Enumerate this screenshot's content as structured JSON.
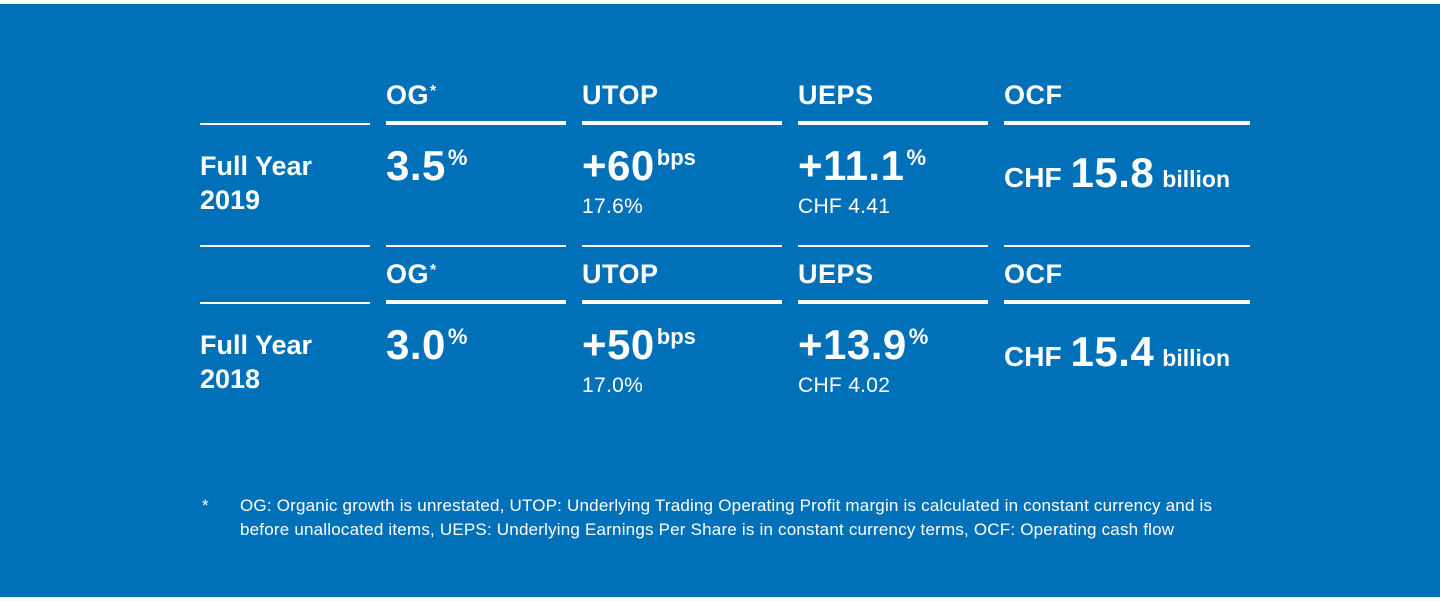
{
  "slide": {
    "background_color": "#0071b8",
    "text_color": "#ffffff"
  },
  "sections": [
    {
      "period": {
        "line1": "Full Year",
        "line2": "2019"
      },
      "og": {
        "header": "OG",
        "header_sup": "*",
        "value": "3.5",
        "unit": "%"
      },
      "utop": {
        "header": "UTOP",
        "value": "+60",
        "unit": "bps",
        "detail": "17.6%"
      },
      "ueps": {
        "header": "UEPS",
        "value": "+11.1",
        "unit": "%",
        "detail": "CHF 4.41"
      },
      "ocf": {
        "header": "OCF",
        "currency": "CHF",
        "value": "15.8",
        "scale": "billion"
      }
    },
    {
      "period": {
        "line1": "Full Year",
        "line2": "2018"
      },
      "og": {
        "header": "OG",
        "header_sup": "*",
        "value": "3.0",
        "unit": "%"
      },
      "utop": {
        "header": "UTOP",
        "value": "+50",
        "unit": "bps",
        "detail": "17.0%"
      },
      "ueps": {
        "header": "UEPS",
        "value": "+13.9",
        "unit": "%",
        "detail": "CHF 4.02"
      },
      "ocf": {
        "header": "OCF",
        "currency": "CHF",
        "value": "15.4",
        "scale": "billion"
      }
    }
  ],
  "footnote": {
    "marker": "*",
    "text": "OG: Organic growth is unrestated, UTOP: Underlying Trading Operating Profit margin is calculated in constant currency and is before unallocated items, UEPS: Underlying Earnings Per Share is in constant currency terms, OCF: Operating cash flow"
  }
}
